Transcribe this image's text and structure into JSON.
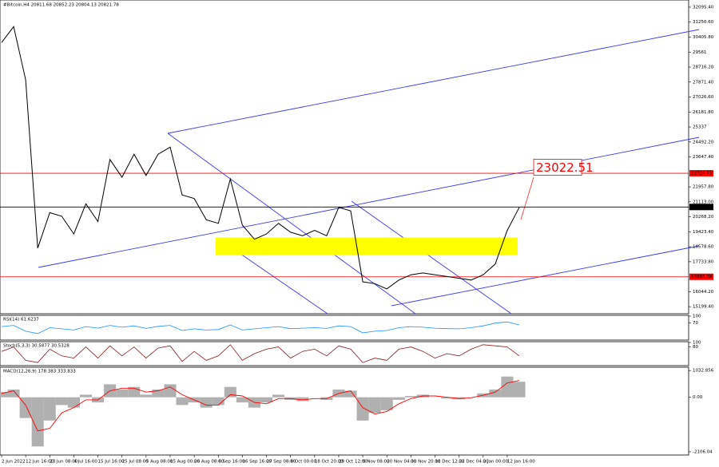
{
  "chart_data": [
    {
      "type": "line",
      "title": "#Bitcoin,H4  20811.68 20852.23 20804.13 20821.78",
      "categories": [
        "2 Jun 2022",
        null,
        "12 Jun 16:00",
        null,
        "23 Jun 08:00",
        null,
        "4 Jul 16:00",
        null,
        "15 Jul 16:00",
        null,
        "25 Jul 08:00",
        null,
        "5 Aug 08:00",
        null,
        "15 Aug 00:00",
        null,
        "26 Aug 08:00",
        null,
        "6 Sep 16:00",
        null,
        "16 Sep 16:00",
        null,
        "27 Sep 08:00",
        null,
        "8 Oct 00:00",
        null,
        "18 Oct 20:00",
        null,
        "29 Oct 12:00",
        null,
        "9 Nov 08:00",
        null,
        "20 Nov 04:00",
        null,
        "30 Nov 20:00",
        null,
        "11 Dec 12:00",
        null,
        "22 Dec 04:00",
        null,
        "2 Jan 00:00",
        null,
        "12 Jan 16:00",
        null
      ],
      "values": [
        30100,
        31000,
        28000,
        18500,
        20500,
        20300,
        19300,
        21000,
        20000,
        23500,
        22500,
        23800,
        22600,
        23800,
        24200,
        21500,
        21300,
        20100,
        19900,
        22400,
        19800,
        19000,
        19300,
        19900,
        19400,
        19200,
        19500,
        19200,
        20800,
        20600,
        16600,
        16500,
        16200,
        16700,
        17000,
        17100,
        17000,
        16900,
        16800,
        16700,
        17000,
        17600,
        19500,
        20800
      ],
      "color": "#000000",
      "ylim": [
        14800,
        32500
      ],
      "yticks": [
        {
          "value": 32095.4,
          "label": "32095.40"
        },
        {
          "value": 31250.6,
          "label": "31250.60"
        },
        {
          "value": 30405.8,
          "label": "30405.80"
        },
        29561,
        {
          "value": 28716.2,
          "label": "28716.20"
        },
        {
          "value": 27871.4,
          "label": "27871.40"
        },
        {
          "value": 27026.6,
          "label": "27026.60"
        },
        {
          "value": 26181.8,
          "label": "26181.80"
        },
        25337,
        {
          "value": 24492.2,
          "label": "24492.20"
        },
        {
          "value": 23647.4,
          "label": "23647.40"
        },
        {
          "value": 21957.8,
          "label": "21957.80"
        },
        {
          "value": 21113,
          "label": "21113.00"
        },
        {
          "value": 20268.2,
          "label": "20268.20"
        },
        {
          "value": 19423.4,
          "label": "19423.40"
        },
        {
          "value": 18578.6,
          "label": "18578.60"
        },
        {
          "value": 17733.8,
          "label": "17733.80"
        },
        {
          "value": 16044.2,
          "label": "16044.20"
        },
        {
          "value": 15199.4,
          "label": "15199.40"
        }
      ],
      "levels": [
        22724.73,
        20821.78,
        16883.78
      ],
      "level_colors": [
        "#ff0000",
        "#000000",
        "#ff0000"
      ],
      "zone": [
        18100,
        19100
      ],
      "zone_color": "#ffff00",
      "annotation": 23022.51
    },
    {
      "type": "line",
      "title": "RSI(14) 61.6237",
      "color": "#1e90ff",
      "values": [
        55,
        60,
        35,
        25,
        50,
        45,
        40,
        55,
        48,
        60,
        52,
        58,
        47,
        56,
        60,
        38,
        45,
        40,
        42,
        62,
        40,
        45,
        50,
        55,
        46,
        48,
        50,
        47,
        58,
        55,
        28,
        35,
        38,
        50,
        55,
        52,
        48,
        46,
        45,
        50,
        58,
        70,
        75,
        62
      ],
      "ylim": [
        0,
        100
      ],
      "yticks": [
        100,
        70
      ]
    },
    {
      "type": "line",
      "title": "Stoch(5,3,3) 30.5877 30.5328",
      "color": "#8b1a1a",
      "values": [
        60,
        80,
        20,
        10,
        70,
        40,
        30,
        80,
        30,
        85,
        40,
        80,
        30,
        75,
        85,
        15,
        60,
        20,
        40,
        90,
        20,
        50,
        70,
        80,
        30,
        60,
        70,
        40,
        85,
        70,
        10,
        30,
        20,
        70,
        80,
        60,
        30,
        50,
        40,
        70,
        90,
        85,
        80,
        40
      ],
      "ylim": [
        0,
        100
      ],
      "yticks": [
        100,
        80
      ]
    },
    {
      "type": "macd",
      "title": "MACD(12,26,9) 178.383 333.833",
      "series": [
        {
          "style": "bar",
          "color": "#b0b0b0",
          "values": [
            200,
            300,
            -800,
            -1900,
            -900,
            -300,
            -400,
            100,
            -200,
            500,
            300,
            400,
            100,
            300,
            500,
            -300,
            -200,
            -400,
            -300,
            400,
            -200,
            -400,
            -200,
            100,
            -100,
            -150,
            0,
            -100,
            300,
            250,
            -900,
            -600,
            -500,
            -100,
            50,
            100,
            0,
            -50,
            -80,
            0,
            150,
            300,
            800,
            600
          ]
        },
        {
          "style": "line",
          "color": "#ff0000",
          "values": [
            150,
            250,
            -300,
            -1300,
            -1200,
            -600,
            -400,
            -100,
            -100,
            250,
            350,
            350,
            200,
            250,
            400,
            100,
            -100,
            -300,
            -300,
            100,
            50,
            -200,
            -250,
            -50,
            -50,
            -100,
            -50,
            -50,
            150,
            250,
            -400,
            -650,
            -550,
            -250,
            -50,
            50,
            50,
            0,
            -50,
            -20,
            80,
            200,
            550,
            650
          ]
        }
      ],
      "ylim": [
        -2200,
        1130
      ],
      "yticks": [
        {
          "value": 1032.856,
          "label": "1032.856"
        },
        {
          "value": 0,
          "label": "0.00"
        },
        {
          "value": -2106.04,
          "label": "-2106.04"
        }
      ]
    }
  ]
}
